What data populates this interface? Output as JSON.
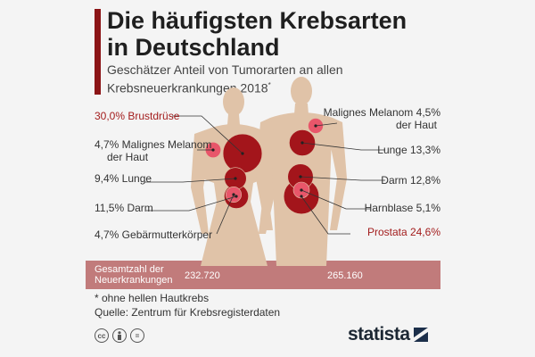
{
  "header": {
    "title": "Die häufigsten Krebsarten\nin Deutschland",
    "subtitle": "Geschätzer Anteil von Tumorarten an allen Krebsneuerkrankungen 2018",
    "subtitle_mark": "*"
  },
  "chart_data": {
    "type": "bubble-figure",
    "unit": "%",
    "series": [
      {
        "values": [
          {
            "label": "30,0% Brustdrüse",
            "value": 30.0,
            "name": "Brustdrüse",
            "highlight": true
          },
          {
            "label": "4,7% Malignes Melanom\nder Haut",
            "value": 4.7,
            "name": "Malignes Melanom der Haut",
            "highlight": false
          },
          {
            "label": "9,4% Lunge",
            "value": 9.4,
            "name": "Lunge",
            "highlight": false
          },
          {
            "label": "11,5% Darm",
            "value": 11.5,
            "name": "Darm",
            "highlight": false
          },
          {
            "label": "4,7% Gebärmutterkörper",
            "value": 4.7,
            "name": "Gebärmutterkörper",
            "highlight": false
          }
        ],
        "total_label": "232.720",
        "total": 232720
      },
      {
        "values": [
          {
            "label": "Malignes Melanom 4,5%\nder Haut",
            "value": 4.5,
            "name": "Malignes Melanom der Haut",
            "highlight": false
          },
          {
            "label": "Lunge 13,3%",
            "value": 13.3,
            "name": "Lunge",
            "highlight": false
          },
          {
            "label": "Darm 12,8%",
            "value": 12.8,
            "name": "Darm",
            "highlight": false
          },
          {
            "label": "Harnblase 5,1%",
            "value": 5.1,
            "name": "Harnblase",
            "highlight": false
          },
          {
            "label": "Prostata 24,6%",
            "value": 24.6,
            "name": "Prostata",
            "highlight": true
          }
        ],
        "total_label": "265.160",
        "total": 265160
      }
    ],
    "totals_label": "Gesamtzahl der\nNeuerkrankungen"
  },
  "footer": {
    "footnote": "* ohne hellen Hautkrebs",
    "source": "Quelle: Zentrum für Krebsregisterdaten",
    "license_icons": [
      "cc",
      "person",
      "="
    ],
    "logo_text": "statista"
  },
  "colors": {
    "accent": "#8b1416",
    "body": "#e0c3a8",
    "bubble_small": "#e8566a",
    "bubble_large": "#a3151b",
    "totals_band": "#c17b7b",
    "text_highlight": "#a31d1d"
  }
}
